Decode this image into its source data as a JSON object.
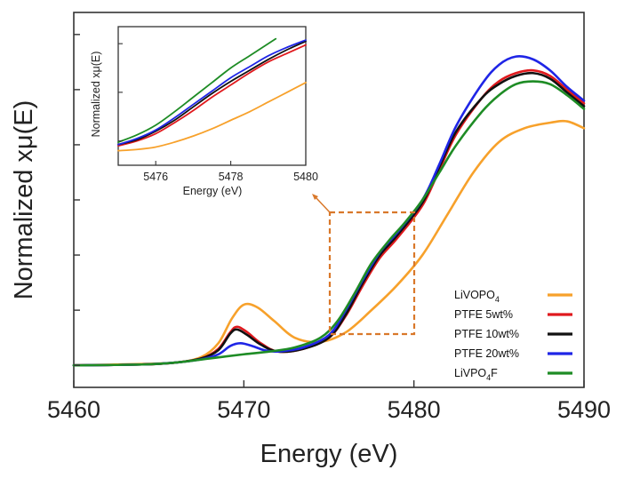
{
  "chart_data": [
    {
      "type": "line",
      "panel": "main",
      "title": "",
      "xlabel": "Energy (eV)",
      "ylabel": "Normalized xμ(E)",
      "xlim": [
        5460,
        5490
      ],
      "ylim": [
        -0.08,
        1.28
      ],
      "xticks": [
        5460,
        5470,
        5480,
        5490
      ],
      "xtick_labels": [
        "5460",
        "5470",
        "5480",
        "5490"
      ],
      "yticks": [
        0,
        0.2,
        0.4,
        0.6,
        0.8,
        1.0,
        1.2
      ],
      "show_ytick_labels": false,
      "grid": false,
      "legend_position": "bottom-right",
      "series": [
        {
          "name": "LiVOPO",
          "name_sub": "4",
          "name_tail": "",
          "color": "#f7a12b",
          "x": [
            5460,
            5464,
            5466,
            5467.5,
            5468.5,
            5469.3,
            5470,
            5470.8,
            5471.8,
            5473,
            5474.5,
            5476,
            5477.5,
            5479,
            5480.5,
            5482,
            5483.5,
            5485,
            5486.5,
            5488,
            5489,
            5490
          ],
          "y": [
            0,
            0.005,
            0.01,
            0.03,
            0.08,
            0.17,
            0.22,
            0.21,
            0.16,
            0.1,
            0.085,
            0.12,
            0.2,
            0.29,
            0.4,
            0.55,
            0.7,
            0.81,
            0.86,
            0.88,
            0.885,
            0.86
          ]
        },
        {
          "name": "PTFE 5wt%",
          "name_sub": "",
          "name_tail": "",
          "color": "#e0191d",
          "x": [
            5460,
            5464,
            5466,
            5467.5,
            5468.5,
            5469.2,
            5469.6,
            5470.2,
            5471,
            5472,
            5473.5,
            5475,
            5476,
            5477,
            5478,
            5479,
            5480.5,
            5481.5,
            5482.5,
            5484,
            5485,
            5486,
            5487,
            5488,
            5489,
            5490
          ],
          "y": [
            0,
            0.003,
            0.01,
            0.025,
            0.06,
            0.12,
            0.14,
            0.12,
            0.08,
            0.05,
            0.06,
            0.1,
            0.18,
            0.29,
            0.39,
            0.46,
            0.58,
            0.71,
            0.84,
            0.97,
            1.03,
            1.06,
            1.07,
            1.05,
            1.0,
            0.95
          ]
        },
        {
          "name": "PTFE 10wt%",
          "name_sub": "",
          "name_tail": "",
          "color": "#111111",
          "x": [
            5460,
            5464,
            5466,
            5467.5,
            5468.5,
            5469.2,
            5469.6,
            5470.2,
            5471,
            5472,
            5473.5,
            5475,
            5476,
            5477,
            5478,
            5479,
            5480.5,
            5481.5,
            5482.5,
            5484,
            5485,
            5486,
            5487,
            5488,
            5489,
            5490
          ],
          "y": [
            0,
            0.003,
            0.01,
            0.025,
            0.055,
            0.115,
            0.13,
            0.11,
            0.075,
            0.05,
            0.06,
            0.1,
            0.185,
            0.3,
            0.4,
            0.47,
            0.59,
            0.72,
            0.85,
            0.97,
            1.02,
            1.05,
            1.06,
            1.04,
            0.99,
            0.94
          ]
        },
        {
          "name": "PTFE 20wt%",
          "name_sub": "",
          "name_tail": "",
          "color": "#1f25e6",
          "x": [
            5460,
            5464,
            5466,
            5467.5,
            5468.5,
            5469.2,
            5469.8,
            5470.5,
            5471.2,
            5472,
            5473.5,
            5475,
            5476,
            5477,
            5478,
            5479,
            5480.5,
            5481.5,
            5482.5,
            5484,
            5485,
            5486,
            5487,
            5488,
            5489,
            5490
          ],
          "y": [
            0,
            0.003,
            0.01,
            0.022,
            0.04,
            0.07,
            0.08,
            0.07,
            0.055,
            0.05,
            0.065,
            0.11,
            0.2,
            0.31,
            0.41,
            0.48,
            0.6,
            0.73,
            0.87,
            1.02,
            1.09,
            1.12,
            1.11,
            1.07,
            1.01,
            0.96
          ]
        },
        {
          "name": "LiVPO",
          "name_sub": "4",
          "name_tail": "F",
          "color": "#1e8c25",
          "x": [
            5460,
            5464,
            5466,
            5468,
            5470,
            5471.5,
            5473,
            5474.5,
            5475.5,
            5476.5,
            5477.5,
            5478.5,
            5479.5,
            5480.5,
            5481.5,
            5482.5,
            5484,
            5485,
            5486,
            5487,
            5488,
            5489,
            5490
          ],
          "y": [
            0,
            0.003,
            0.01,
            0.025,
            0.04,
            0.05,
            0.065,
            0.1,
            0.16,
            0.26,
            0.37,
            0.45,
            0.52,
            0.6,
            0.7,
            0.8,
            0.92,
            0.98,
            1.02,
            1.03,
            1.02,
            0.98,
            0.93
          ]
        }
      ]
    },
    {
      "type": "line",
      "panel": "inset",
      "title": "",
      "xlabel": "Energy (eV)",
      "ylabel": "Normalized xμ(E)",
      "xlim": [
        5475,
        5480
      ],
      "ylim": [
        0.05,
        0.62
      ],
      "xticks": [
        5476,
        5478,
        5480
      ],
      "xtick_labels": [
        "5476",
        "5478",
        "5480"
      ],
      "grid": false,
      "series": [
        {
          "name": "LiVOPO4",
          "color": "#f7a12b",
          "x": [
            5475,
            5475.5,
            5476,
            5476.5,
            5477,
            5477.5,
            5478,
            5478.5,
            5479,
            5479.5,
            5480
          ],
          "y": [
            0.11,
            0.115,
            0.125,
            0.145,
            0.17,
            0.2,
            0.235,
            0.27,
            0.31,
            0.35,
            0.39
          ]
        },
        {
          "name": "PTFE 5wt%",
          "color": "#e0191d",
          "x": [
            5475,
            5475.5,
            5476,
            5476.5,
            5477,
            5477.5,
            5478,
            5478.5,
            5479,
            5479.5,
            5480
          ],
          "y": [
            0.13,
            0.15,
            0.18,
            0.225,
            0.275,
            0.33,
            0.38,
            0.43,
            0.475,
            0.51,
            0.545
          ]
        },
        {
          "name": "PTFE 10wt%",
          "color": "#111111",
          "x": [
            5475,
            5475.5,
            5476,
            5476.5,
            5477,
            5477.5,
            5478,
            5478.5,
            5479,
            5479.5,
            5480
          ],
          "y": [
            0.135,
            0.155,
            0.19,
            0.235,
            0.29,
            0.345,
            0.395,
            0.44,
            0.485,
            0.525,
            0.56
          ]
        },
        {
          "name": "PTFE 20wt%",
          "color": "#1f25e6",
          "x": [
            5475,
            5475.5,
            5476,
            5476.5,
            5477,
            5477.5,
            5478,
            5478.5,
            5479,
            5479.5,
            5480
          ],
          "y": [
            0.135,
            0.16,
            0.195,
            0.245,
            0.3,
            0.355,
            0.41,
            0.455,
            0.5,
            0.535,
            0.565
          ]
        },
        {
          "name": "LiVPO4F",
          "color": "#1e8c25",
          "x": [
            5475,
            5475.5,
            5476,
            5476.5,
            5477,
            5477.5,
            5478,
            5478.5,
            5479,
            5479.2
          ],
          "y": [
            0.145,
            0.175,
            0.215,
            0.27,
            0.33,
            0.39,
            0.45,
            0.5,
            0.55,
            0.57
          ]
        }
      ]
    }
  ]
}
